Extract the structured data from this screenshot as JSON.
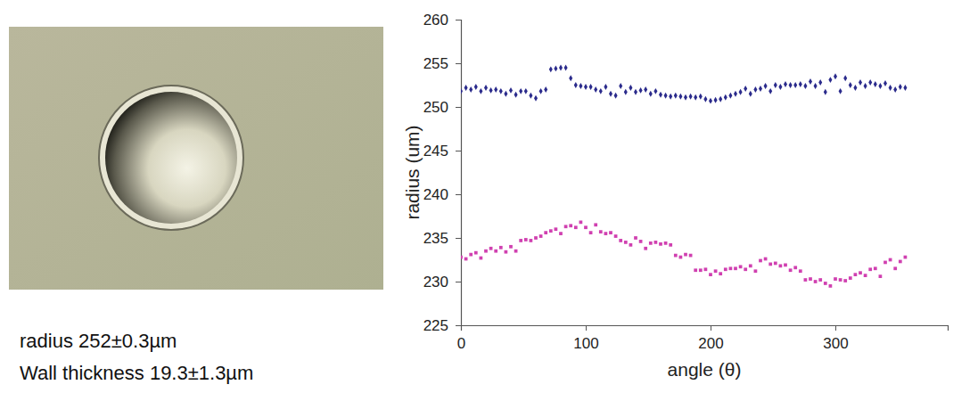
{
  "chart_data": {
    "type": "scatter",
    "x_label": "angle (θ)",
    "y_label": "radius (um)",
    "annotations": [
      "radius 252±0.3µm",
      "Wall thickness 19.3±1.3µm"
    ],
    "x": [
      0,
      4,
      8,
      12,
      16,
      20,
      24,
      28,
      32,
      36,
      40,
      44,
      48,
      52,
      56,
      60,
      64,
      68,
      72,
      76,
      80,
      84,
      88,
      92,
      96,
      100,
      104,
      108,
      112,
      116,
      120,
      124,
      128,
      132,
      136,
      140,
      144,
      148,
      152,
      156,
      160,
      164,
      168,
      172,
      176,
      180,
      184,
      188,
      192,
      196,
      200,
      204,
      208,
      212,
      216,
      220,
      224,
      228,
      232,
      236,
      240,
      244,
      248,
      252,
      256,
      260,
      264,
      268,
      272,
      276,
      280,
      284,
      288,
      292,
      296,
      300,
      304,
      308,
      312,
      316,
      320,
      324,
      328,
      332,
      336,
      340,
      344,
      348,
      352,
      356
    ],
    "series": [
      {
        "color": "#2b2b8c",
        "marker": "diamond",
        "values": [
          251.8,
          252.2,
          252.0,
          252.3,
          251.8,
          252.2,
          251.9,
          252.0,
          251.8,
          251.5,
          251.9,
          251.4,
          251.8,
          251.8,
          251.3,
          251.0,
          251.8,
          252.0,
          254.3,
          254.4,
          254.5,
          254.5,
          253.3,
          252.5,
          252.4,
          252.3,
          252.3,
          252.0,
          251.8,
          252.3,
          251.5,
          251.3,
          252.4,
          251.7,
          252.2,
          251.7,
          251.9,
          252.0,
          251.5,
          251.8,
          251.4,
          251.3,
          251.2,
          251.3,
          251.2,
          251.1,
          251.2,
          251.1,
          251.2,
          250.9,
          250.7,
          250.8,
          250.9,
          251.1,
          251.3,
          251.5,
          251.7,
          252.1,
          251.5,
          252.0,
          252.1,
          252.4,
          251.8,
          252.5,
          252.3,
          252.6,
          252.5,
          252.5,
          252.6,
          252.4,
          252.9,
          252.4,
          252.8,
          251.7,
          253.1,
          253.5,
          251.8,
          253.3,
          252.5,
          252.2,
          252.8,
          252.4,
          252.8,
          252.6,
          252.4,
          252.7,
          252.2,
          252.0,
          252.3,
          252.2
        ]
      },
      {
        "color": "#d040b0",
        "marker": "square",
        "values": [
          232.8,
          232.6,
          233.1,
          233.3,
          232.7,
          233.5,
          233.8,
          233.5,
          233.9,
          233.4,
          234.0,
          233.5,
          234.7,
          234.8,
          234.7,
          235.0,
          235.2,
          235.6,
          235.8,
          236.0,
          235.5,
          236.3,
          236.4,
          236.2,
          236.8,
          236.2,
          235.6,
          236.5,
          235.7,
          235.5,
          235.6,
          235.2,
          234.7,
          234.5,
          234.2,
          235.0,
          234.6,
          233.8,
          234.4,
          234.5,
          234.3,
          234.4,
          234.2,
          233.0,
          232.8,
          233.1,
          233.0,
          231.3,
          231.3,
          231.4,
          230.8,
          231.2,
          230.9,
          231.4,
          231.5,
          231.5,
          231.7,
          231.4,
          231.8,
          231.2,
          232.4,
          232.6,
          232.0,
          232.1,
          231.8,
          231.9,
          231.3,
          231.6,
          231.2,
          230.2,
          230.3,
          230.0,
          230.2,
          229.8,
          229.5,
          230.3,
          230.2,
          230.1,
          230.4,
          230.8,
          231.0,
          230.7,
          231.4,
          231.5,
          230.6,
          232.2,
          232.5,
          231.5,
          232.3,
          232.8
        ]
      }
    ],
    "xlim": [
      0,
      390
    ],
    "ylim": [
      225,
      260
    ],
    "xticks": [
      0,
      100,
      200,
      300
    ],
    "yticks": [
      225,
      230,
      235,
      240,
      245,
      250,
      255,
      260
    ],
    "grid": false
  }
}
